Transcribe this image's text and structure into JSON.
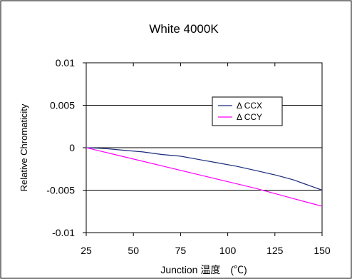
{
  "chart_data": {
    "type": "line",
    "title": "White 4000K",
    "xlabel": "Junction 温度　(℃)",
    "ylabel": "Relative Chromaticity",
    "xlim": [
      25,
      150
    ],
    "ylim": [
      -0.01,
      0.01
    ],
    "x_ticks": [
      "25",
      "50",
      "75",
      "100",
      "125",
      "150"
    ],
    "y_ticks": [
      "0.01",
      "0.005",
      "0",
      "-0.005",
      "-0.01"
    ],
    "grid": "horizontal major gridlines",
    "legend_position": "upper-right inside plot",
    "series": [
      {
        "name": "Δ CCX",
        "color": "#1a2a7a",
        "x": [
          25,
          35,
          45,
          55,
          65,
          75,
          85,
          95,
          105,
          115,
          125,
          130,
          135,
          140,
          145,
          150
        ],
        "y": [
          0,
          -0.0001,
          -0.0003,
          -0.0005,
          -0.0008,
          -0.001,
          -0.0014,
          -0.0018,
          -0.0022,
          -0.0027,
          -0.0032,
          -0.0035,
          -0.0038,
          -0.0042,
          -0.0046,
          -0.005
        ]
      },
      {
        "name": "Δ CCY",
        "color": "#ff00ff",
        "x": [
          25,
          40,
          55,
          70,
          85,
          100,
          115,
          130,
          135,
          140,
          145,
          150
        ],
        "y": [
          0,
          -0.0008,
          -0.0016,
          -0.0024,
          -0.0032,
          -0.004,
          -0.0048,
          -0.0057,
          -0.006,
          -0.0063,
          -0.0066,
          -0.0069
        ]
      }
    ]
  }
}
